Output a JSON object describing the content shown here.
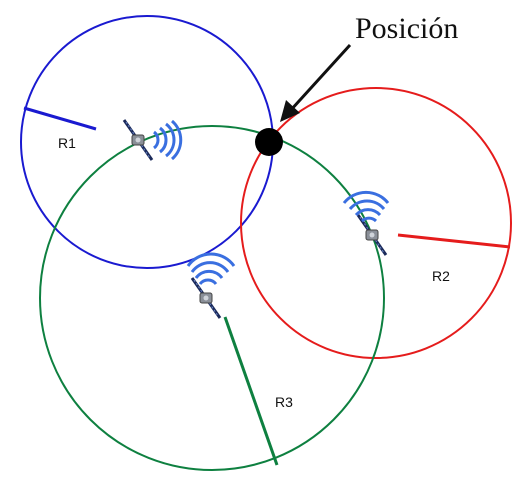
{
  "title": "Posición",
  "colors": {
    "circle_1": "#1a1ad0",
    "circle_2": "#e51c1c",
    "circle_3": "#0e8040",
    "position_dot": "#000000",
    "signal": "#3a6fe0"
  },
  "satellites": [
    {
      "label": "R1",
      "color_key": "circle_1",
      "icon": "satellite-icon"
    },
    {
      "label": "R2",
      "color_key": "circle_2",
      "icon": "satellite-icon"
    },
    {
      "label": "R3",
      "color_key": "circle_3",
      "icon": "satellite-icon"
    }
  ],
  "pointer_icon": "arrow-icon"
}
